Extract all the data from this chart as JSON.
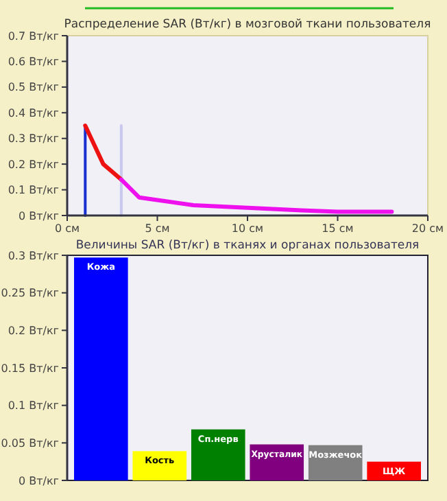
{
  "chart_data": [
    {
      "type": "line",
      "title": "Распределение SAR (Вт/кг) в мозговой ткани пользователя",
      "xlim": [
        0,
        20
      ],
      "ylim": [
        0,
        0.7
      ],
      "xticks": [
        {
          "value": 0,
          "label": "0 см"
        },
        {
          "value": 5,
          "label": "5 см"
        },
        {
          "value": 10,
          "label": "10 см"
        },
        {
          "value": 15,
          "label": "15 см"
        },
        {
          "value": 20,
          "label": "20 см"
        }
      ],
      "yticks": [
        {
          "value": 0,
          "label": "0 Вт/кг"
        },
        {
          "value": 0.1,
          "label": "0.1 Вт/кг"
        },
        {
          "value": 0.2,
          "label": "0.2 Вт/кг"
        },
        {
          "value": 0.3,
          "label": "0.3 Вт/кг"
        },
        {
          "value": 0.4,
          "label": "0.4 Вт/кг"
        },
        {
          "value": 0.5,
          "label": "0.5 Вт/кг"
        },
        {
          "value": 0.6,
          "label": "0.6 Вт/кг"
        },
        {
          "value": 0.7,
          "label": "0.7 Вт/кг"
        }
      ],
      "series": [
        {
          "color": "#1a2fd0",
          "x": [
            1,
            1
          ],
          "values": [
            0,
            0.35
          ]
        },
        {
          "color": "#c8c8f0",
          "x": [
            3,
            3
          ],
          "values": [
            0,
            0.35
          ]
        },
        {
          "color": "#ee1111",
          "x": [
            1,
            2,
            3
          ],
          "values": [
            0.35,
            0.2,
            0.14
          ]
        },
        {
          "color": "#ee11ee",
          "x": [
            3,
            4,
            5,
            7,
            10,
            13,
            15,
            18
          ],
          "values": [
            0.14,
            0.07,
            0.06,
            0.04,
            0.03,
            0.02,
            0.015,
            0.015
          ]
        }
      ]
    },
    {
      "type": "bar",
      "title": "Величины SAR (Вт/кг) в тканях и органах пользователя",
      "ylim": [
        0,
        0.3
      ],
      "yticks": [
        {
          "value": 0,
          "label": "0 Вт/кг"
        },
        {
          "value": 0.05,
          "label": "0.05 Вт/кг"
        },
        {
          "value": 0.1,
          "label": "0.1 Вт/кг"
        },
        {
          "value": 0.15,
          "label": "0.15 Вт/кг"
        },
        {
          "value": 0.2,
          "label": "0.2 Вт/кг"
        },
        {
          "value": 0.25,
          "label": "0.25 Вт/кг"
        },
        {
          "value": 0.3,
          "label": "0.3 Вт/кг"
        }
      ],
      "categories": [
        "Кожа",
        "Кость",
        "Сп.нерв",
        "Хрусталик",
        "Мозжечок",
        "ЩЖ"
      ],
      "values": [
        0.297,
        0.039,
        0.068,
        0.048,
        0.047,
        0.025
      ],
      "colors": [
        "#0000ff",
        "#ffff00",
        "#008000",
        "#800080",
        "#808080",
        "#ff0000"
      ]
    }
  ]
}
